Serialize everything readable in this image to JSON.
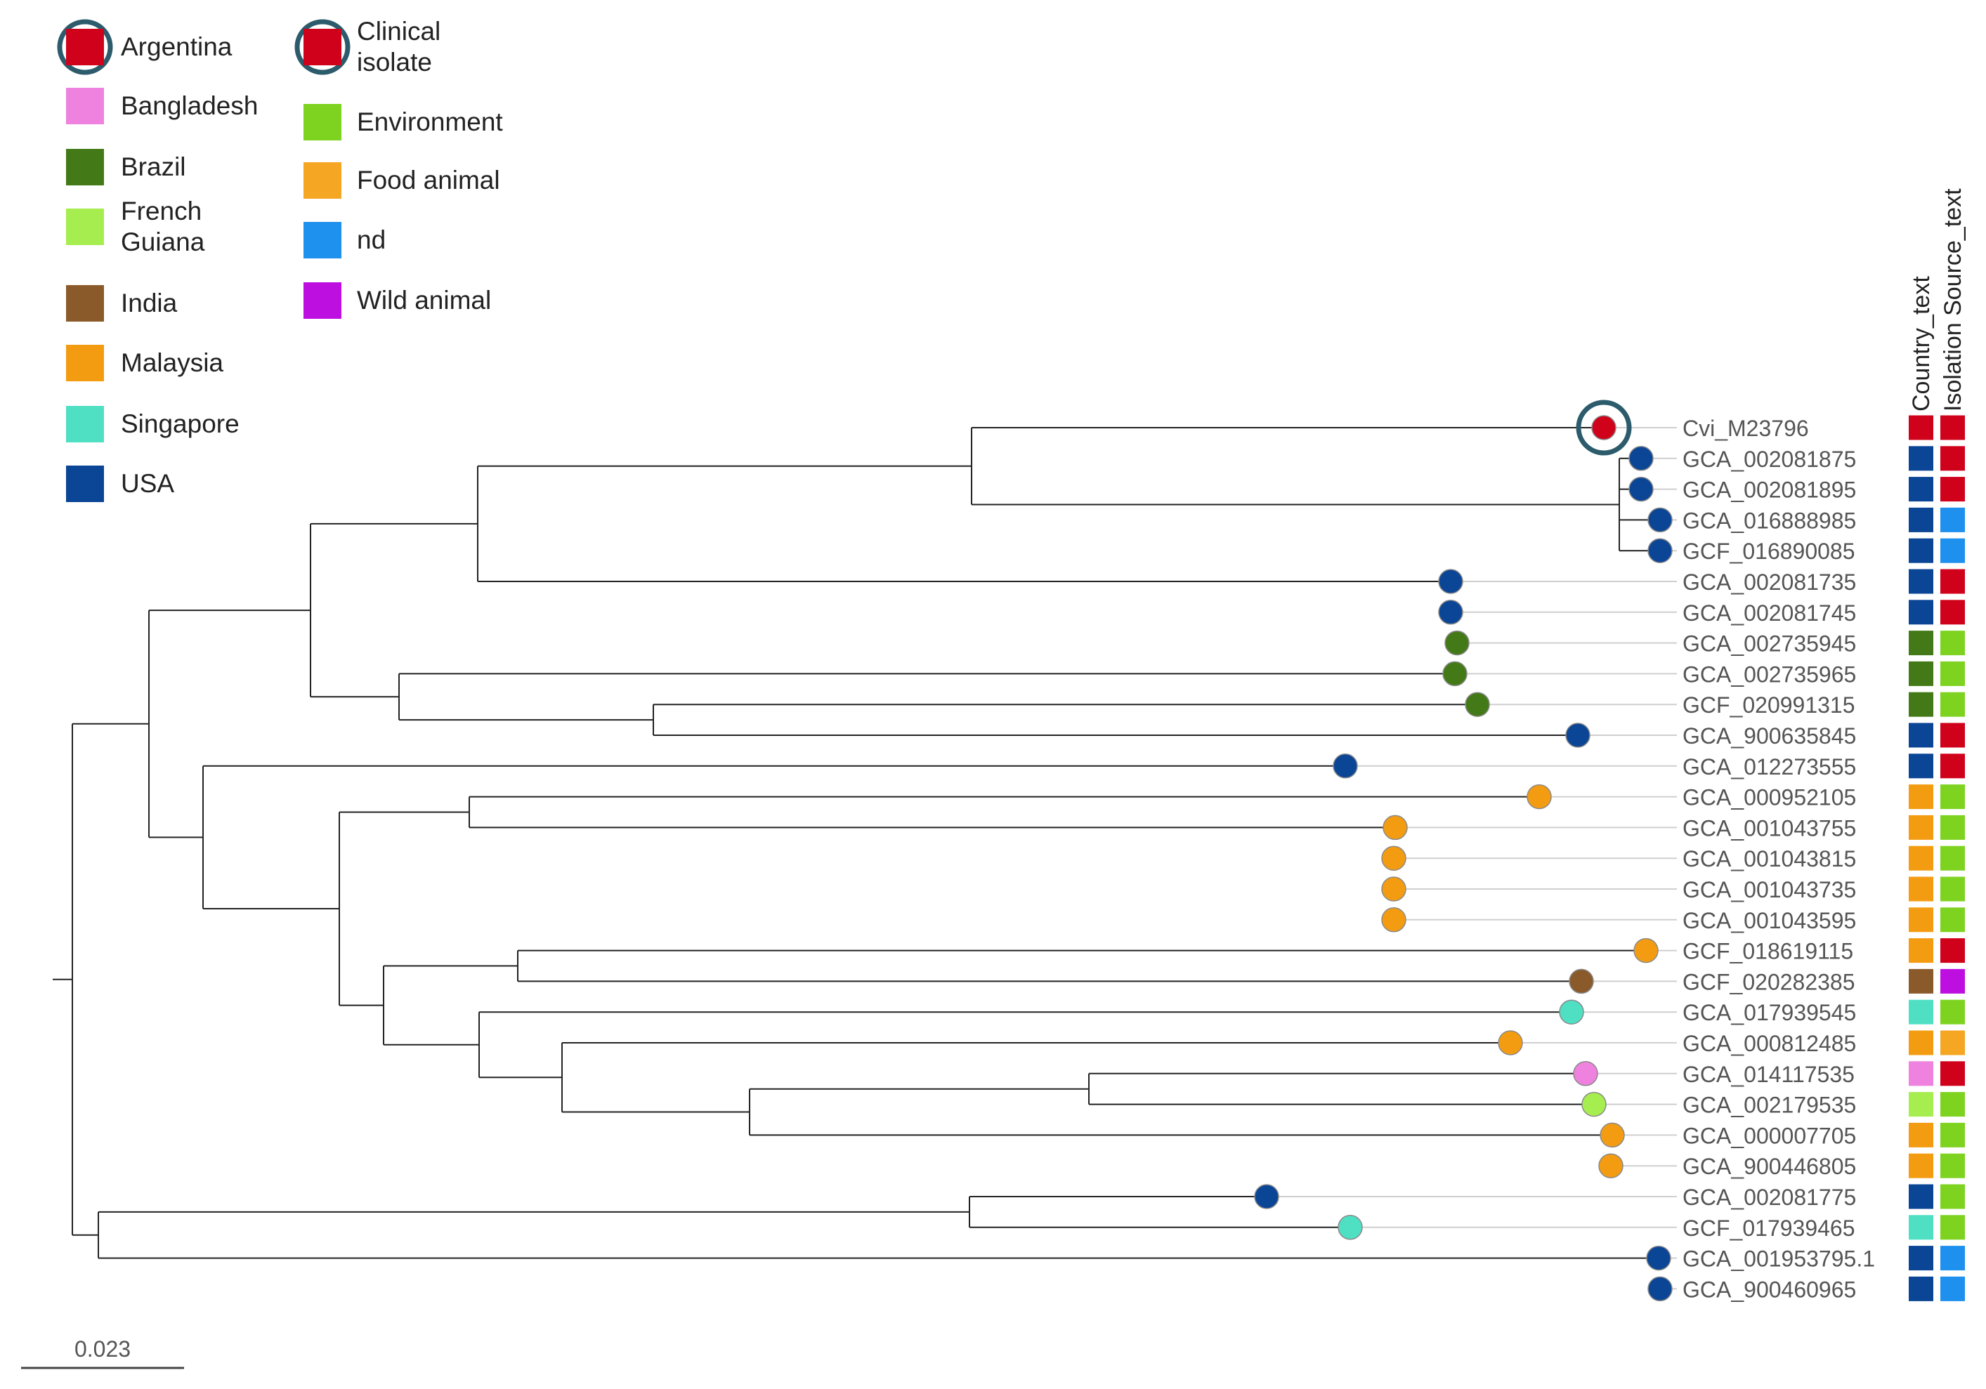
{
  "colors": {
    "Argentina": "#d0021b",
    "Bangladesh": "#ee82de",
    "Brazil": "#437a17",
    "French Guiana": "#a6ee4f",
    "India": "#8b5a2b",
    "Malaysia": "#f39c12",
    "Singapore": "#4fe0c4",
    "USA": "#0b4595",
    "Clinical isolate": "#d0021b",
    "Environment": "#7ed321",
    "Food animal": "#f5a623",
    "nd": "#1e90ee",
    "Wild animal": "#bd10e0"
  },
  "legend": {
    "country": [
      {
        "key": "Argentina",
        "lines": [
          "Argentina"
        ],
        "highlight": true
      },
      {
        "key": "Bangladesh",
        "lines": [
          "Bangladesh"
        ]
      },
      {
        "key": "Brazil",
        "lines": [
          "Brazil"
        ]
      },
      {
        "key": "French Guiana",
        "lines": [
          "French",
          "Guiana"
        ]
      },
      {
        "key": "India",
        "lines": [
          "India"
        ]
      },
      {
        "key": "Malaysia",
        "lines": [
          "Malaysia"
        ]
      },
      {
        "key": "Singapore",
        "lines": [
          "Singapore"
        ]
      },
      {
        "key": "USA",
        "lines": [
          "USA"
        ]
      }
    ],
    "source": [
      {
        "key": "Clinical isolate",
        "lines": [
          "Clinical",
          "isolate"
        ],
        "highlight": true
      },
      {
        "key": "Environment",
        "lines": [
          "Environment"
        ]
      },
      {
        "key": "Food animal",
        "lines": [
          "Food animal"
        ]
      },
      {
        "key": "nd",
        "lines": [
          "nd"
        ]
      },
      {
        "key": "Wild animal",
        "lines": [
          "Wild animal"
        ]
      }
    ]
  },
  "column_headers": [
    "Country_text",
    "Isolation Source_text"
  ],
  "tree": {
    "scale_bar_label": "0.023",
    "highlighted_leaf": "Cvi_M23796",
    "leaves": [
      {
        "name": "Cvi_M23796",
        "country": "Argentina",
        "source": "Clinical isolate"
      },
      {
        "name": "GCA_002081875",
        "country": "USA",
        "source": "Clinical isolate"
      },
      {
        "name": "GCA_002081895",
        "country": "USA",
        "source": "Clinical isolate"
      },
      {
        "name": "GCA_016888985",
        "country": "USA",
        "source": "nd"
      },
      {
        "name": "GCF_016890085",
        "country": "USA",
        "source": "nd"
      },
      {
        "name": "GCA_002081735",
        "country": "USA",
        "source": "Clinical isolate"
      },
      {
        "name": "GCA_002081745",
        "country": "USA",
        "source": "Clinical isolate"
      },
      {
        "name": "GCA_002735945",
        "country": "Brazil",
        "source": "Environment"
      },
      {
        "name": "GCA_002735965",
        "country": "Brazil",
        "source": "Environment"
      },
      {
        "name": "GCF_020991315",
        "country": "Brazil",
        "source": "Environment"
      },
      {
        "name": "GCA_900635845",
        "country": "USA",
        "source": "Clinical isolate"
      },
      {
        "name": "GCA_012273555",
        "country": "USA",
        "source": "Clinical isolate"
      },
      {
        "name": "GCA_000952105",
        "country": "Malaysia",
        "source": "Environment"
      },
      {
        "name": "GCA_001043755",
        "country": "Malaysia",
        "source": "Environment"
      },
      {
        "name": "GCA_001043815",
        "country": "Malaysia",
        "source": "Environment"
      },
      {
        "name": "GCA_001043735",
        "country": "Malaysia",
        "source": "Environment"
      },
      {
        "name": "GCA_001043595",
        "country": "Malaysia",
        "source": "Environment"
      },
      {
        "name": "GCF_018619115",
        "country": "Malaysia",
        "source": "Clinical isolate"
      },
      {
        "name": "GCF_020282385",
        "country": "India",
        "source": "Wild animal"
      },
      {
        "name": "GCA_017939545",
        "country": "Singapore",
        "source": "Environment"
      },
      {
        "name": "GCA_000812485",
        "country": "Malaysia",
        "source": "Food animal"
      },
      {
        "name": "GCA_014117535",
        "country": "Bangladesh",
        "source": "Clinical isolate"
      },
      {
        "name": "GCA_002179535",
        "country": "French Guiana",
        "source": "Environment"
      },
      {
        "name": "GCA_000007705",
        "country": "Malaysia",
        "source": "Environment"
      },
      {
        "name": "GCA_900446805",
        "country": "Malaysia",
        "source": "Environment"
      },
      {
        "name": "GCA_002081775",
        "country": "USA",
        "source": "Environment"
      },
      {
        "name": "GCF_017939465",
        "country": "Singapore",
        "source": "Environment"
      },
      {
        "name": "GCA_001953795.1",
        "country": "USA",
        "source": "nd"
      },
      {
        "name": "GCA_900460965",
        "country": "USA",
        "source": "nd"
      }
    ]
  }
}
